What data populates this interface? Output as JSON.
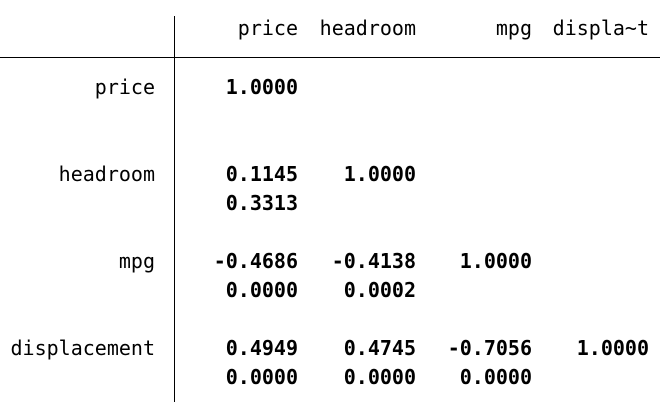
{
  "columns": [
    "price",
    "headroom",
    "mpg",
    "displa~t"
  ],
  "rows": [
    {
      "label": "price",
      "coef": [
        "1.0000",
        "",
        "",
        ""
      ],
      "pval": [
        "",
        "",
        "",
        ""
      ]
    },
    {
      "label": "headroom",
      "coef": [
        "0.1145",
        "1.0000",
        "",
        ""
      ],
      "pval": [
        "0.3313",
        "",
        "",
        ""
      ]
    },
    {
      "label": "mpg",
      "coef": [
        "-0.4686",
        "-0.4138",
        "1.0000",
        ""
      ],
      "pval": [
        "0.0000",
        "0.0002",
        "",
        ""
      ]
    },
    {
      "label": "displacement",
      "coef": [
        "0.4949",
        "0.4745",
        "-0.7056",
        "1.0000"
      ],
      "pval": [
        "0.0000",
        "0.0000",
        "0.0000",
        ""
      ]
    }
  ]
}
